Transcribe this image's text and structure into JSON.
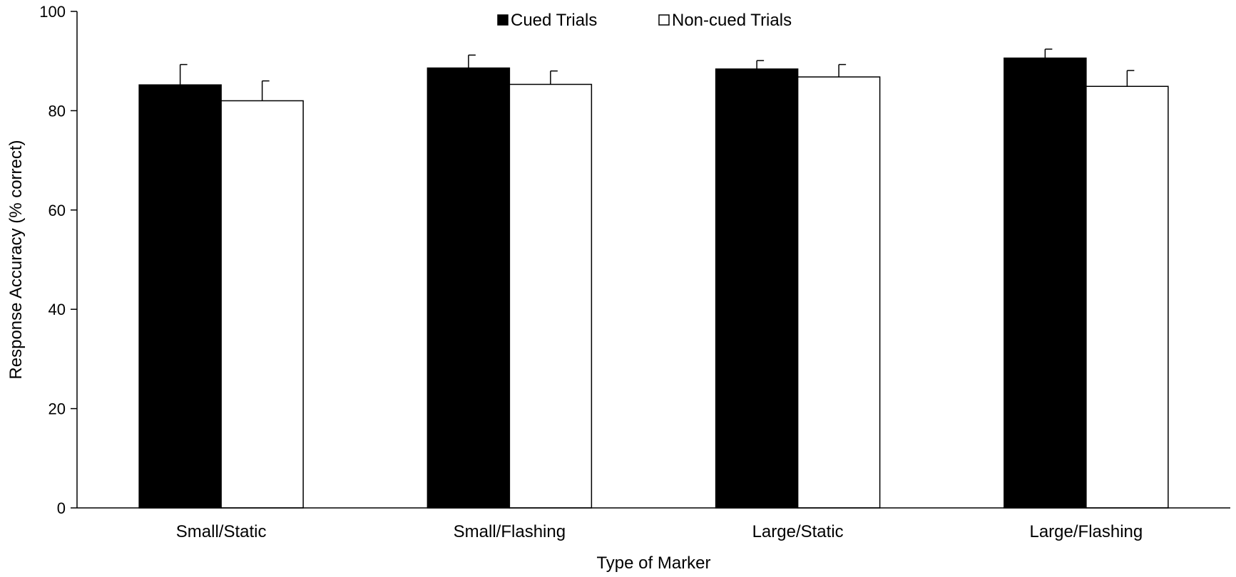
{
  "chart_data": {
    "type": "bar",
    "title": "",
    "xlabel": "Type of Marker",
    "ylabel": "Response Accuracy (% correct)",
    "ylim": [
      0,
      100
    ],
    "yticks": [
      0,
      20,
      40,
      60,
      80,
      100
    ],
    "grid": false,
    "legend_position": "top-center",
    "categories": [
      "Small/Static",
      "Small/Flashing",
      "Large/Static",
      "Large/Flashing"
    ],
    "series": [
      {
        "name": "Cued Trials",
        "color": "#000000",
        "values": [
          85.2,
          88.6,
          88.4,
          90.6
        ],
        "error": [
          4.1,
          2.6,
          1.7,
          1.8
        ]
      },
      {
        "name": "Non-cued Trials",
        "color": "#ffffff",
        "values": [
          82.0,
          85.3,
          86.8,
          84.9
        ],
        "error": [
          4.0,
          2.7,
          2.5,
          3.2
        ]
      }
    ]
  }
}
